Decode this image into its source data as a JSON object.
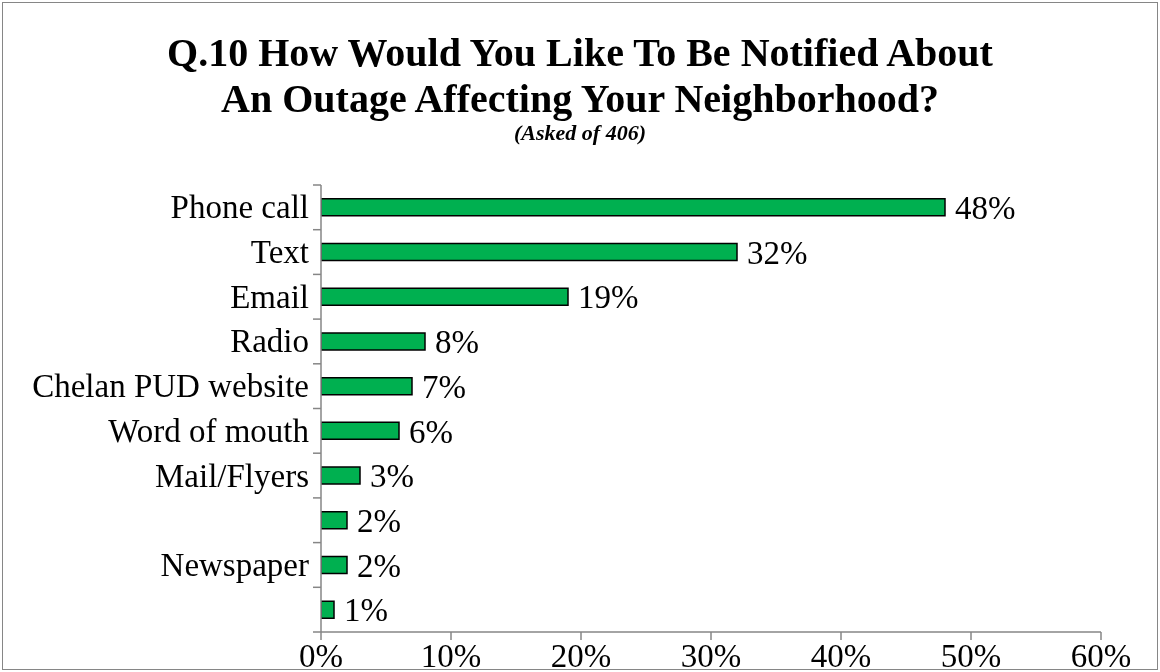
{
  "chart_data": {
    "type": "bar",
    "orientation": "horizontal",
    "title": "Q.10 How Would You Like To Be Notified About An Outage Affecting Your Neighborhood?",
    "subtitle": "(Asked of 406)",
    "categories": [
      "Phone call",
      "Text",
      "Email",
      "Radio",
      "Chelan PUD website",
      "Word of mouth",
      "Mail/Flyers",
      null,
      "Newspaper",
      null
    ],
    "values": [
      48,
      32,
      19,
      8,
      7,
      6,
      3,
      2,
      2,
      1
    ],
    "value_labels": [
      "48%",
      "32%",
      "19%",
      "8%",
      "7%",
      "6%",
      "3%",
      "2%",
      "2%",
      "1%"
    ],
    "color": "#00b050",
    "xlim": [
      0,
      60
    ],
    "xticks": [
      {
        "value": 0,
        "label": "0%"
      },
      {
        "value": 10,
        "label": "10%"
      },
      {
        "value": 20,
        "label": "20%"
      },
      {
        "value": 30,
        "label": "30%"
      },
      {
        "value": 40,
        "label": "40%"
      },
      {
        "value": 50,
        "label": "50%"
      },
      {
        "value": 60,
        "label": "60%"
      }
    ]
  }
}
